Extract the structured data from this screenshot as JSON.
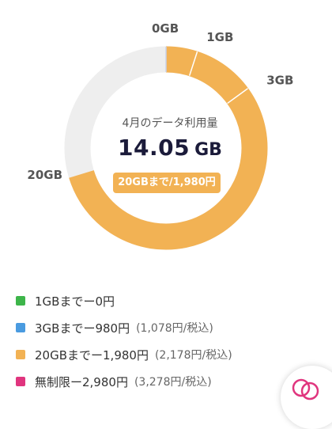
{
  "usage": {
    "caption": "4月のデータ利用量",
    "value": "14.05",
    "unit": "GB",
    "used_gb": 14.05,
    "max_gb": 20,
    "current_plan": "20GBまで/1,980円"
  },
  "tiers": [
    {
      "label": "0GB",
      "gb": 0
    },
    {
      "label": "1GB",
      "gb": 1
    },
    {
      "label": "3GB",
      "gb": 3
    },
    {
      "label": "20GB",
      "gb": 20
    }
  ],
  "legend": [
    {
      "main": "1GBまでー0円",
      "sub": "",
      "color": "#3db54a"
    },
    {
      "main": "3GBまでー980円",
      "sub": "(1,078円/税込)",
      "color": "#4a9be0"
    },
    {
      "main": "20GBまでー1,980円",
      "sub": "(2,178円/税込)",
      "color": "#f2b254"
    },
    {
      "main": "無制限ー2,980円",
      "sub": "(3,278円/税込)",
      "color": "#e0357e"
    }
  ],
  "colors": {
    "used": "#f2b254",
    "remaining": "#eeeeee",
    "accent": "#e0357e"
  },
  "icons": {
    "fab": "chat-bubbles-icon"
  }
}
